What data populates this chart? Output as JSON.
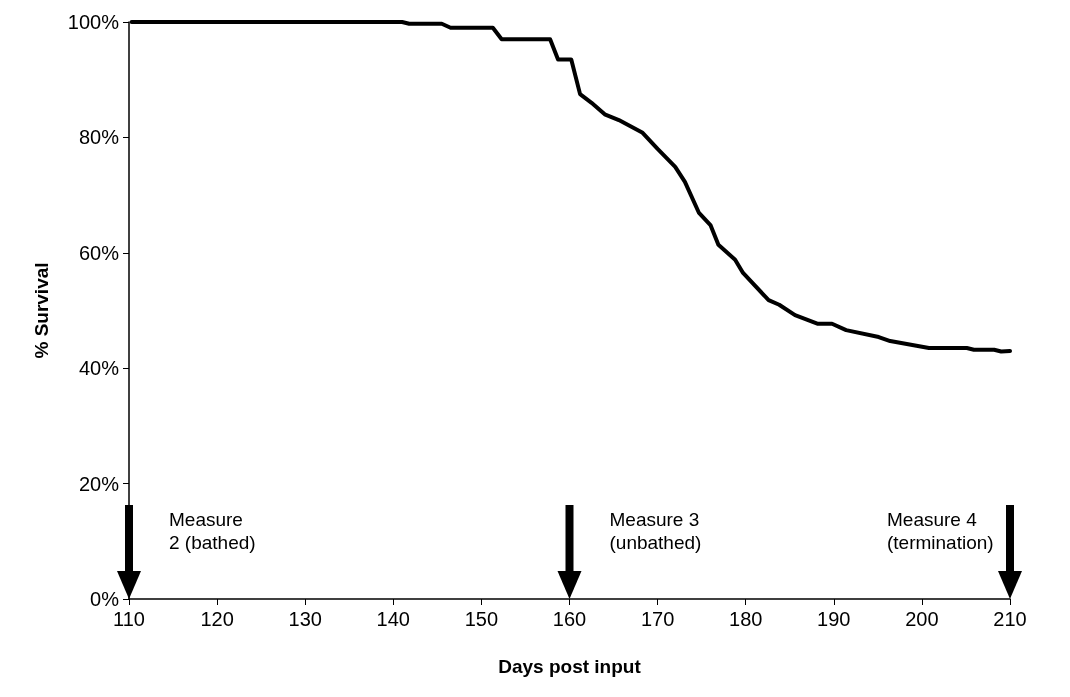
{
  "chart_data": {
    "type": "line",
    "xlabel": "Days post input",
    "ylabel": "% Survival",
    "xlim": [
      110,
      210
    ],
    "xticks": [
      110,
      120,
      130,
      140,
      150,
      160,
      170,
      180,
      190,
      200,
      210
    ],
    "ylim": [
      0,
      100
    ],
    "yticks": [
      {
        "value": 0,
        "label": "0%"
      },
      {
        "value": 20,
        "label": "20%"
      },
      {
        "value": 40,
        "label": "40%"
      },
      {
        "value": 60,
        "label": "60%"
      },
      {
        "value": 80,
        "label": "80%"
      },
      {
        "value": 100,
        "label": "100%"
      }
    ],
    "grid": false,
    "marker": "none",
    "line_style": "solid",
    "series": [
      {
        "color": "#000000",
        "x": [
          110.3,
          141,
          141.8,
          145.5,
          146.5,
          151.3,
          152.3,
          157.8,
          158.7,
          160.2,
          161.2,
          162.5,
          164,
          165.6,
          168.3,
          170,
          172,
          173.1,
          174.7,
          176,
          176.9,
          178.8,
          179.7,
          182.6,
          183.8,
          185.6,
          188.2,
          189.8,
          191.4,
          195.1,
          196.4,
          200.8,
          205.1,
          205.9,
          208.2,
          209,
          210
        ],
        "values": [
          100,
          100,
          99.7,
          99.7,
          99,
          99,
          97,
          97,
          93.5,
          93.5,
          87.5,
          86,
          84,
          83,
          80.8,
          78,
          74.9,
          72.3,
          66.9,
          64.8,
          61.4,
          58.8,
          56.5,
          51.8,
          51,
          49.2,
          47.7,
          47.7,
          46.6,
          45.4,
          44.7,
          43.5,
          43.5,
          43.2,
          43.2,
          42.9,
          43
        ]
      }
    ],
    "annotations": [
      "Measure\n2 (bathed)",
      "Measure 3\n(unbathed)",
      "Measure 4\n(termination)"
    ]
  }
}
